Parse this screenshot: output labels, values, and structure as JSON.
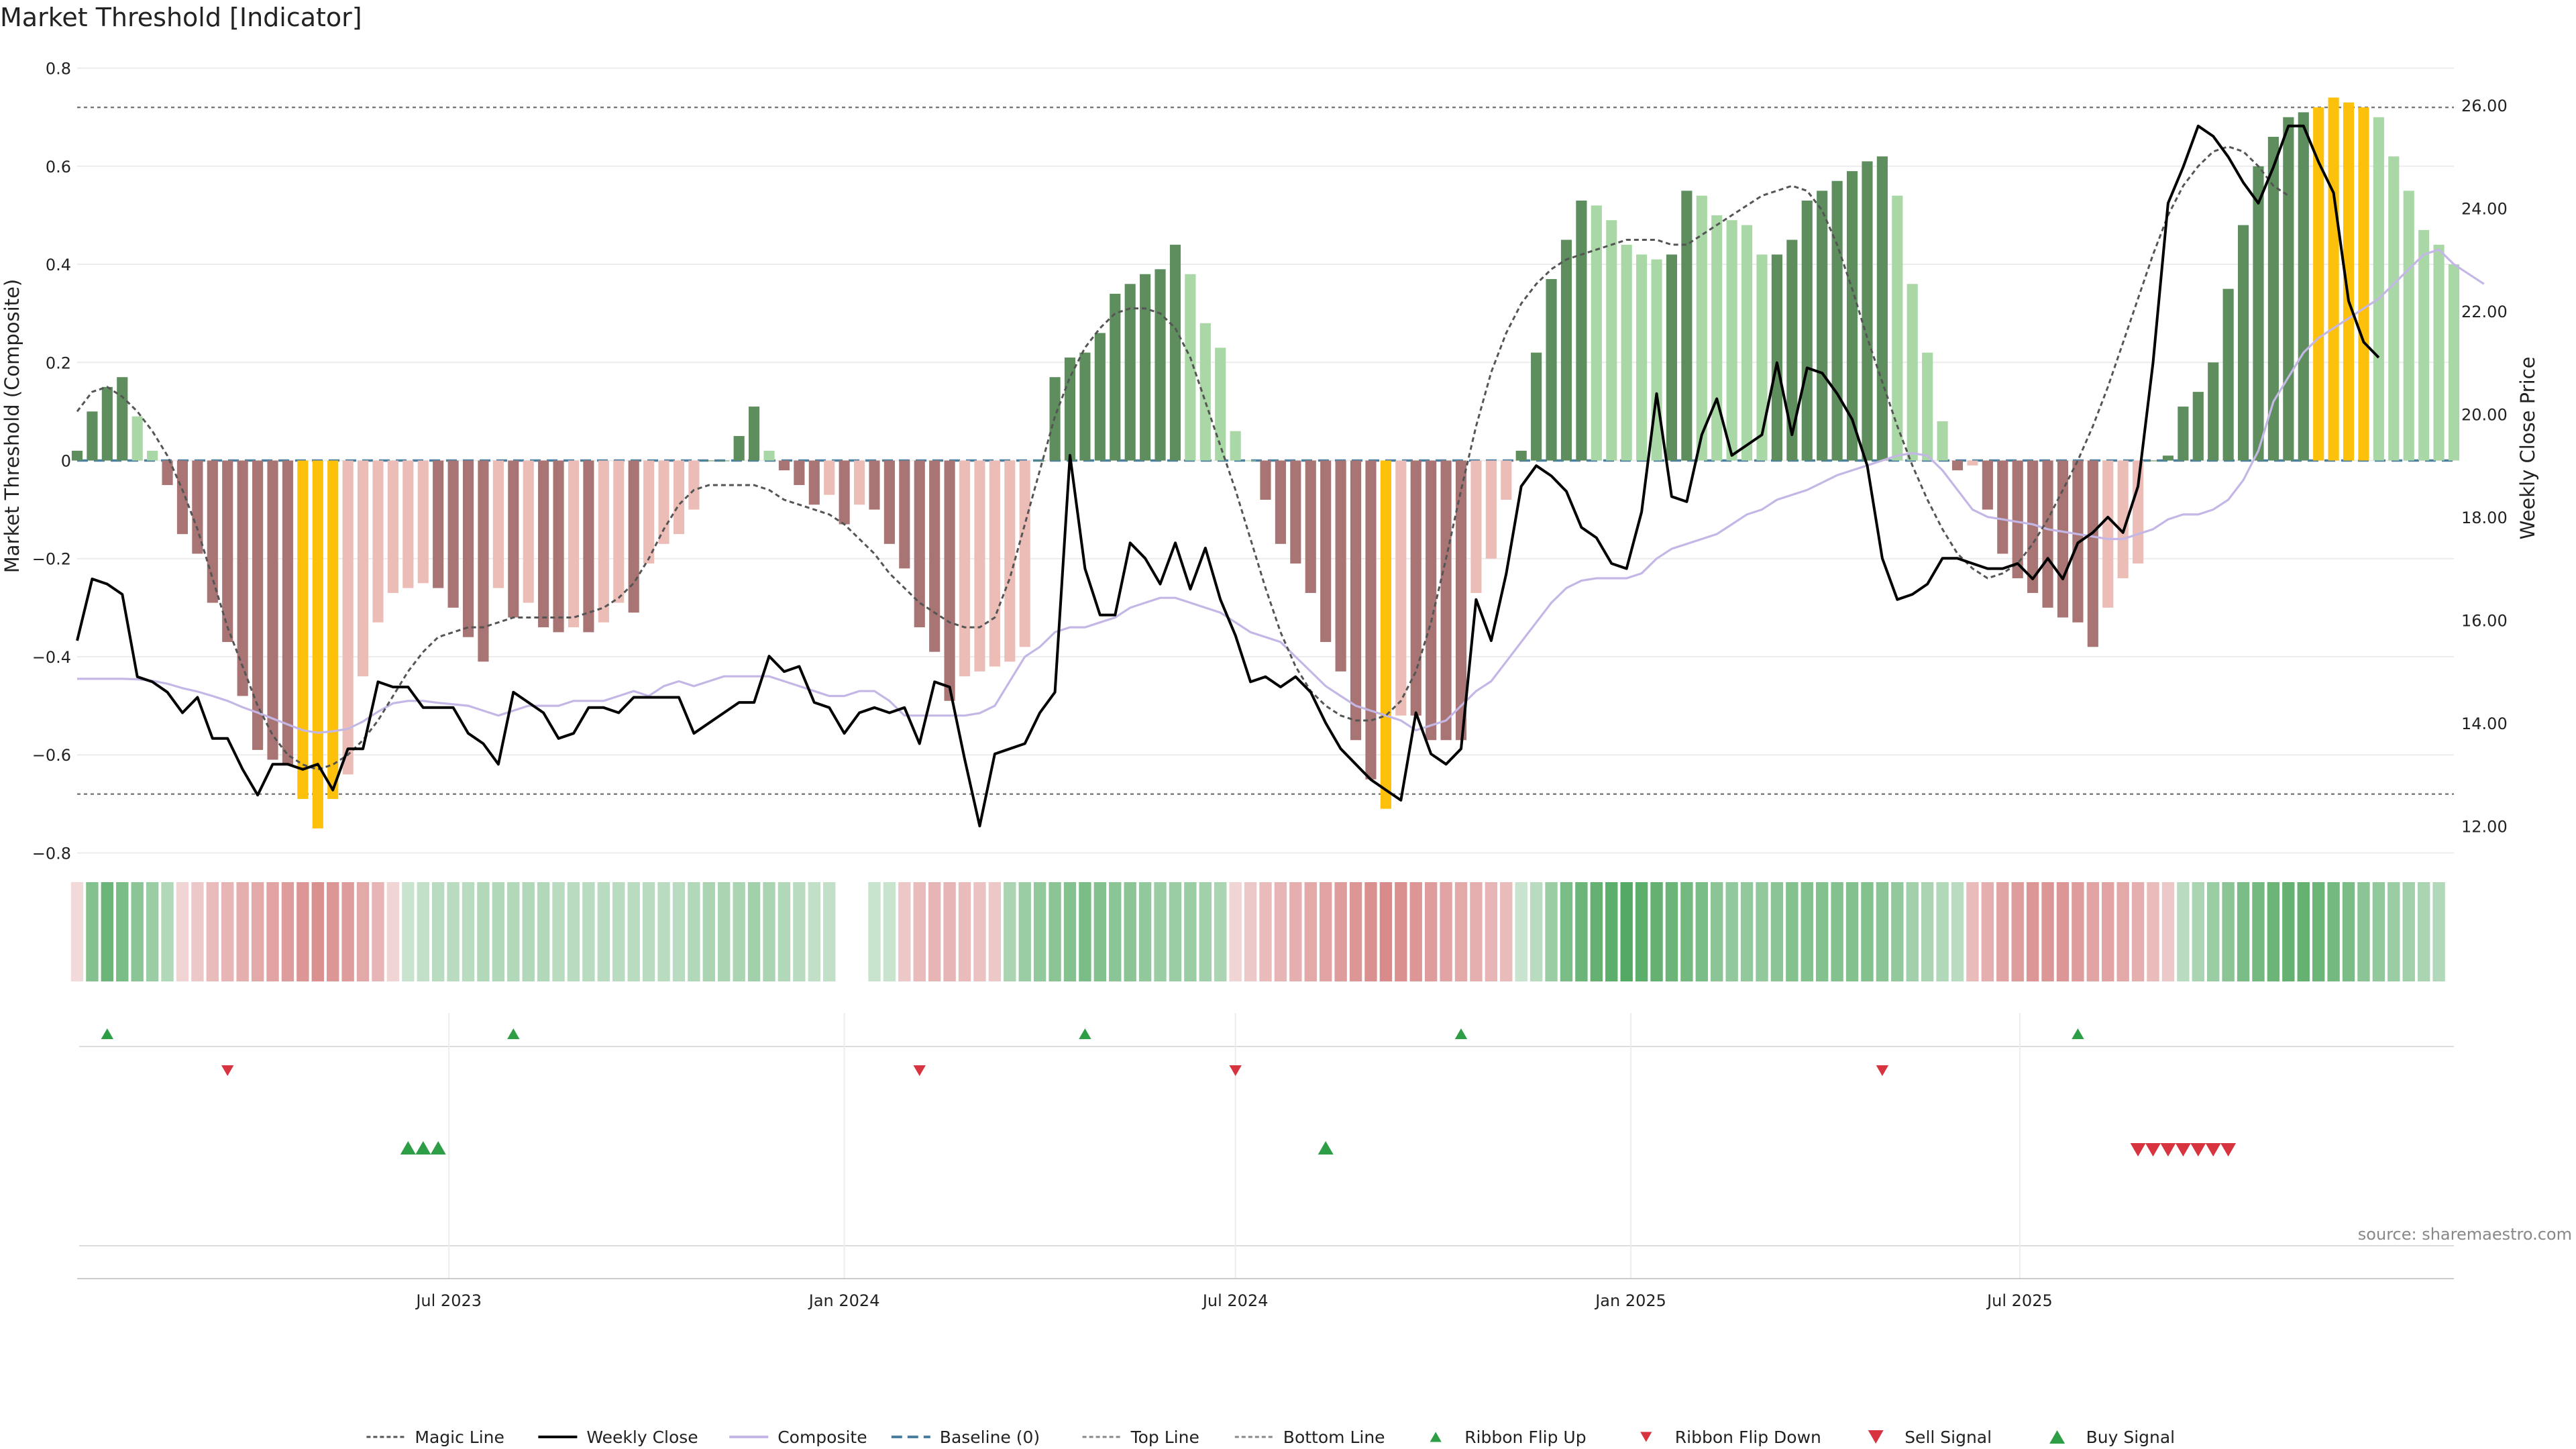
{
  "title": "Market Threshold [Indicator]",
  "source_note": "source: sharemaestro.com",
  "chart_data": {
    "type": "bar",
    "title": "Market Threshold [Indicator]",
    "ylabel": "Market Threshold (Composite)",
    "y2label": "Weekly Close Price",
    "ylim": [
      -0.85,
      0.85
    ],
    "y2lim": [
      11.0,
      27.2
    ],
    "yticks": [
      -0.8,
      -0.6,
      -0.4,
      -0.2,
      0,
      0.2,
      0.4,
      0.6,
      0.8
    ],
    "ytick_labels": [
      "−0.8",
      "−0.6",
      "−0.4",
      "−0.2",
      "0",
      "0.2",
      "0.4",
      "0.6",
      "0.8"
    ],
    "y2ticks": [
      12,
      14,
      16,
      18,
      20,
      22,
      24,
      26
    ],
    "y2tick_labels": [
      "12.00",
      "14.00",
      "16.00",
      "18.00",
      "20.00",
      "22.00",
      "24.00",
      "26.00"
    ],
    "x_start": "2023-01-09",
    "x_end": "2025-10-27",
    "xticks": [
      "2023-07-01",
      "2024-01-01",
      "2024-07-01",
      "2025-01-01",
      "2025-07-01"
    ],
    "xtick_labels": [
      "Jul 2023",
      "Jan 2024",
      "Jul 2024",
      "Jan 2025",
      "Jul 2025"
    ],
    "top_line": 0.72,
    "bottom_line": -0.68,
    "baseline": 0,
    "composite": [
      0.02,
      0.1,
      0.15,
      0.17,
      0.09,
      0.02,
      -0.05,
      -0.15,
      -0.19,
      -0.29,
      -0.37,
      -0.48,
      -0.59,
      -0.61,
      -0.62,
      -0.69,
      -0.75,
      -0.69,
      -0.64,
      -0.44,
      -0.33,
      -0.27,
      -0.26,
      -0.25,
      -0.26,
      -0.3,
      -0.36,
      -0.41,
      -0.26,
      -0.32,
      -0.29,
      -0.34,
      -0.35,
      -0.34,
      -0.35,
      -0.33,
      -0.29,
      -0.31,
      -0.21,
      -0.17,
      -0.15,
      -0.1,
      0,
      0,
      0.05,
      0.11,
      0.02,
      -0.02,
      -0.05,
      -0.09,
      -0.07,
      -0.13,
      -0.09,
      -0.1,
      -0.17,
      -0.22,
      -0.34,
      -0.39,
      -0.49,
      -0.44,
      -0.43,
      -0.42,
      -0.41,
      -0.38,
      0,
      0.17,
      0.21,
      0.22,
      0.26,
      0.34,
      0.36,
      0.38,
      0.39,
      0.44,
      0.38,
      0.28,
      0.23,
      0.06,
      0,
      -0.08,
      -0.17,
      -0.21,
      -0.27,
      -0.37,
      -0.43,
      -0.57,
      -0.65,
      -0.71,
      -0.52,
      -0.52,
      -0.57,
      -0.57,
      -0.57,
      -0.27,
      -0.2,
      -0.08,
      0.02,
      0.22,
      0.37,
      0.45,
      0.53,
      0.52,
      0.49,
      0.44,
      0.42,
      0.41,
      0.42,
      0.55,
      0.54,
      0.5,
      0.49,
      0.48,
      0.42,
      0.42,
      0.45,
      0.53,
      0.55,
      0.57,
      0.59,
      0.61,
      0.62,
      0.54,
      0.36,
      0.22,
      0.08,
      -0.02,
      -0.01,
      -0.1,
      -0.19,
      -0.24,
      -0.27,
      -0.3,
      -0.32,
      -0.33,
      -0.38,
      -0.3,
      -0.24,
      -0.21,
      0,
      0.01,
      0.11,
      0.14,
      0.2,
      0.35,
      0.48,
      0.6,
      0.66,
      0.7,
      0.71,
      0.72,
      0.74,
      0.73,
      0.72,
      0.7,
      0.62,
      0.55,
      0.47,
      0.44,
      0.4
    ],
    "composite_smooth": [
      -0.445,
      -0.445,
      -0.445,
      -0.445,
      -0.446,
      -0.449,
      -0.455,
      -0.464,
      -0.471,
      -0.48,
      -0.49,
      -0.503,
      -0.514,
      -0.526,
      -0.538,
      -0.55,
      -0.555,
      -0.552,
      -0.547,
      -0.532,
      -0.512,
      -0.495,
      -0.49,
      -0.49,
      -0.494,
      -0.497,
      -0.5,
      -0.51,
      -0.52,
      -0.51,
      -0.5,
      -0.5,
      -0.5,
      -0.49,
      -0.49,
      -0.49,
      -0.48,
      -0.47,
      -0.48,
      -0.46,
      -0.45,
      -0.46,
      -0.45,
      -0.44,
      -0.44,
      -0.44,
      -0.44,
      -0.45,
      -0.46,
      -0.47,
      -0.48,
      -0.48,
      -0.47,
      -0.47,
      -0.49,
      -0.52,
      -0.52,
      -0.52,
      -0.52,
      -0.52,
      -0.515,
      -0.5,
      -0.45,
      -0.4,
      -0.38,
      -0.35,
      -0.34,
      -0.34,
      -0.33,
      -0.32,
      -0.3,
      -0.29,
      -0.28,
      -0.28,
      -0.29,
      -0.3,
      -0.31,
      -0.33,
      -0.35,
      -0.36,
      -0.37,
      -0.4,
      -0.43,
      -0.46,
      -0.48,
      -0.5,
      -0.51,
      -0.52,
      -0.53,
      -0.55,
      -0.54,
      -0.53,
      -0.5,
      -0.47,
      -0.45,
      -0.41,
      -0.37,
      -0.33,
      -0.29,
      -0.26,
      -0.245,
      -0.24,
      -0.24,
      -0.24,
      -0.23,
      -0.2,
      -0.18,
      -0.17,
      -0.16,
      -0.15,
      -0.13,
      -0.11,
      -0.1,
      -0.08,
      -0.07,
      -0.06,
      -0.045,
      -0.03,
      -0.02,
      -0.01,
      0.0,
      0.01,
      0.015,
      0.01,
      -0.02,
      -0.06,
      -0.1,
      -0.115,
      -0.12,
      -0.125,
      -0.13,
      -0.14,
      -0.145,
      -0.15,
      -0.155,
      -0.16,
      -0.16,
      -0.15,
      -0.14,
      -0.12,
      -0.11,
      -0.11,
      -0.1,
      -0.08,
      -0.04,
      0.02,
      0.12,
      0.17,
      0.22,
      0.25,
      0.27,
      0.29,
      0.31,
      0.33,
      0.36,
      0.39,
      0.42,
      0.43,
      0.4,
      0.38,
      0.36
    ],
    "magic_line": [
      0.1,
      0.14,
      0.15,
      0.13,
      0.1,
      0.06,
      0.01,
      -0.06,
      -0.14,
      -0.24,
      -0.34,
      -0.42,
      -0.5,
      -0.56,
      -0.6,
      -0.62,
      -0.63,
      -0.62,
      -0.6,
      -0.57,
      -0.53,
      -0.48,
      -0.43,
      -0.39,
      -0.36,
      -0.35,
      -0.34,
      -0.34,
      -0.33,
      -0.32,
      -0.32,
      -0.32,
      -0.32,
      -0.32,
      -0.31,
      -0.3,
      -0.28,
      -0.25,
      -0.2,
      -0.14,
      -0.09,
      -0.06,
      -0.05,
      -0.05,
      -0.05,
      -0.05,
      -0.06,
      -0.08,
      -0.09,
      -0.1,
      -0.11,
      -0.13,
      -0.16,
      -0.19,
      -0.23,
      -0.26,
      -0.29,
      -0.31,
      -0.33,
      -0.34,
      -0.34,
      -0.32,
      -0.24,
      -0.13,
      -0.02,
      0.09,
      0.17,
      0.23,
      0.27,
      0.3,
      0.31,
      0.31,
      0.3,
      0.27,
      0.21,
      0.12,
      0.03,
      -0.06,
      -0.16,
      -0.26,
      -0.35,
      -0.42,
      -0.47,
      -0.5,
      -0.52,
      -0.53,
      -0.53,
      -0.52,
      -0.49,
      -0.43,
      -0.33,
      -0.2,
      -0.06,
      0.07,
      0.18,
      0.26,
      0.32,
      0.36,
      0.39,
      0.41,
      0.42,
      0.43,
      0.44,
      0.45,
      0.45,
      0.45,
      0.44,
      0.44,
      0.46,
      0.48,
      0.5,
      0.52,
      0.54,
      0.55,
      0.56,
      0.55,
      0.51,
      0.44,
      0.35,
      0.25,
      0.16,
      0.07,
      -0.01,
      -0.08,
      -0.14,
      -0.19,
      -0.22,
      -0.24,
      -0.23,
      -0.21,
      -0.17,
      -0.12,
      -0.06,
      0.0,
      0.07,
      0.15,
      0.24,
      0.33,
      0.42,
      0.5,
      0.56,
      0.6,
      0.63,
      0.64,
      0.63,
      0.6,
      0.56,
      0.54
    ],
    "weekly_close": [
      15.6,
      16.8,
      16.7,
      16.5,
      14.9,
      14.8,
      14.6,
      14.2,
      14.5,
      13.7,
      13.7,
      13.1,
      12.6,
      13.2,
      13.2,
      13.1,
      13.2,
      12.7,
      13.5,
      13.5,
      14.8,
      14.7,
      14.7,
      14.3,
      14.3,
      14.3,
      13.8,
      13.6,
      13.2,
      14.6,
      14.4,
      14.2,
      13.7,
      13.8,
      14.3,
      14.3,
      14.2,
      14.5,
      14.5,
      14.5,
      14.5,
      13.8,
      14.0,
      14.2,
      14.4,
      14.4,
      15.3,
      15.0,
      15.1,
      14.4,
      14.3,
      13.8,
      14.2,
      14.3,
      14.2,
      14.3,
      13.6,
      14.8,
      14.7,
      13.3,
      12.0,
      13.4,
      13.5,
      13.6,
      14.2,
      14.6,
      19.2,
      17.0,
      16.1,
      16.1,
      17.5,
      17.2,
      16.7,
      17.5,
      16.6,
      17.4,
      16.4,
      15.7,
      14.8,
      14.9,
      14.7,
      14.9,
      14.6,
      14.0,
      13.5,
      13.2,
      12.9,
      12.7,
      12.5,
      14.2,
      13.4,
      13.2,
      13.5,
      16.4,
      15.6,
      16.9,
      18.6,
      19.0,
      18.8,
      18.5,
      17.8,
      17.6,
      17.1,
      17.0,
      18.1,
      20.4,
      18.4,
      18.3,
      19.6,
      20.3,
      19.2,
      19.4,
      19.6,
      21.0,
      19.6,
      20.9,
      20.8,
      20.4,
      19.9,
      19.0,
      17.2,
      16.4,
      16.5,
      16.7,
      17.2,
      17.2,
      17.1,
      17.0,
      17.0,
      17.1,
      16.8,
      17.2,
      16.8,
      17.5,
      17.7,
      18.0,
      17.7,
      18.6,
      21.0,
      24.1,
      24.8,
      25.6,
      25.4,
      25.0,
      24.5,
      24.1,
      24.8,
      25.6,
      25.6,
      24.9,
      24.3,
      22.2,
      21.4,
      21.1
    ],
    "bar_colors": {
      "green_dark": "#5e8e5e",
      "green_light": "#a9d8a6",
      "red_dark": "#a87574",
      "red_light": "#ecbdb7",
      "yellow": "#fdc10b"
    },
    "ribbon": [
      -0.05,
      0.55,
      0.7,
      0.6,
      0.5,
      0.4,
      0.25,
      -0.1,
      -0.2,
      -0.3,
      -0.35,
      -0.4,
      -0.45,
      -0.5,
      -0.55,
      -0.6,
      -0.65,
      -0.6,
      -0.55,
      -0.45,
      -0.35,
      -0.1,
      0.1,
      0.15,
      0.2,
      0.2,
      0.2,
      0.25,
      0.25,
      0.25,
      0.25,
      0.25,
      0.2,
      0.2,
      0.2,
      0.2,
      0.2,
      0.2,
      0.2,
      0.2,
      0.2,
      0.25,
      0.3,
      0.3,
      0.3,
      0.35,
      0.3,
      0.25,
      0.2,
      0.15,
      0.15,
      0.2,
      0.15,
      0.1,
      0.1,
      -0.2,
      -0.3,
      -0.35,
      -0.35,
      -0.3,
      -0.25,
      -0.2,
      0.3,
      0.4,
      0.45,
      0.5,
      0.55,
      0.6,
      0.55,
      0.5,
      0.5,
      0.45,
      0.4,
      0.4,
      0.4,
      0.35,
      0.3,
      -0.1,
      -0.2,
      -0.3,
      -0.35,
      -0.4,
      -0.45,
      -0.5,
      -0.55,
      -0.6,
      -0.65,
      -0.7,
      -0.65,
      -0.6,
      -0.55,
      -0.5,
      -0.45,
      -0.4,
      -0.35,
      -0.3,
      0.1,
      0.2,
      0.4,
      0.6,
      0.7,
      0.75,
      0.8,
      0.85,
      0.8,
      0.75,
      0.7,
      0.65,
      0.6,
      0.5,
      0.45,
      0.45,
      0.45,
      0.5,
      0.55,
      0.55,
      0.55,
      0.55,
      0.55,
      0.55,
      0.5,
      0.45,
      0.35,
      0.3,
      0.25,
      0.2,
      -0.3,
      -0.4,
      -0.5,
      -0.55,
      -0.6,
      -0.6,
      -0.6,
      -0.55,
      -0.5,
      -0.5,
      -0.45,
      -0.4,
      -0.3,
      -0.2,
      0.2,
      0.3,
      0.4,
      0.5,
      0.6,
      0.65,
      0.7,
      0.75,
      0.75,
      0.7,
      0.65,
      0.6,
      0.5,
      0.45,
      0.4,
      0.35,
      0.3,
      0.25
    ],
    "ribbon_gaps": [
      51,
      52
    ],
    "ribbon_flip_up": [
      "2023-01-23",
      "2023-07-31",
      "2024-04-22",
      "2024-10-14",
      "2025-07-28"
    ],
    "ribbon_flip_down": [
      "2023-03-20",
      "2024-02-05",
      "2024-07-01",
      "2025-04-28"
    ],
    "buy_signal": [
      "2023-06-12",
      "2023-06-19",
      "2023-06-26",
      "2024-08-12"
    ],
    "sell_signal": [
      "2025-08-25",
      "2025-09-01",
      "2025-09-08",
      "2025-09-15",
      "2025-09-22",
      "2025-09-29",
      "2025-10-06"
    ],
    "legend": [
      "Magic Line",
      "Weekly Close",
      "Composite",
      "Baseline (0)",
      "Top Line",
      "Bottom Line",
      "Ribbon Flip Up",
      "Ribbon Flip Down",
      "Sell Signal",
      "Buy Signal"
    ],
    "legend_placement": "bottom-center",
    "grid": true
  },
  "colors": {
    "line_magic": "#555555",
    "line_close": "#000000",
    "line_composite": "#c4b7e6",
    "baseline": "#4a7fa0",
    "ribbon_green": "#3d9e4f",
    "ribbon_red": "#cd6565",
    "marker_up": "#2e9e46",
    "marker_down": "#d8343f"
  }
}
